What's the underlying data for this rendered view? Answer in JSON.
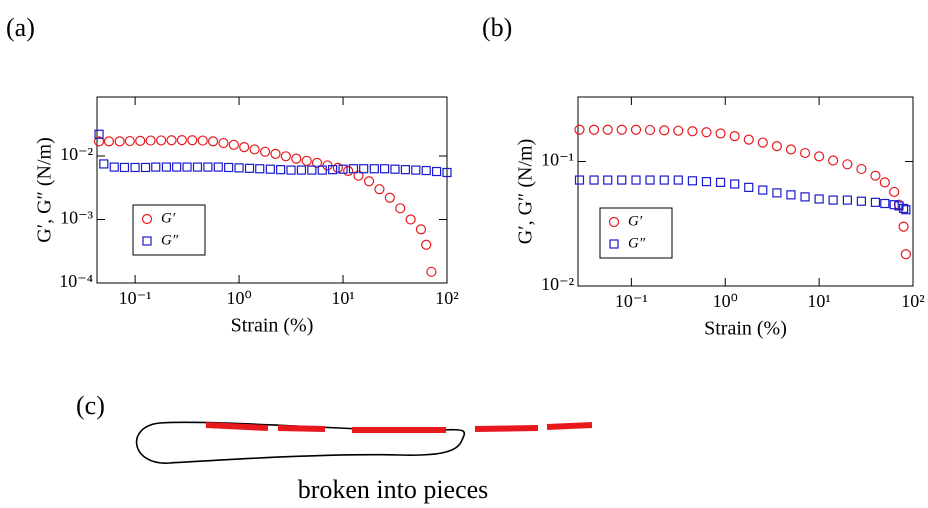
{
  "chart_data": [
    {
      "type": "scatter",
      "panel": "(a)",
      "x_label": "Strain (%)",
      "y_label": "G′, G″ (N/m)",
      "xlog": true,
      "ylog": true,
      "xlim": [
        0.043,
        100
      ],
      "ylim": [
        0.0001,
        0.085
      ],
      "xticks": [
        {
          "value": 0.1,
          "label": "10⁻¹"
        },
        {
          "value": 1,
          "label": "10⁰"
        },
        {
          "value": 10,
          "label": "10¹"
        },
        {
          "value": 100,
          "label": "10²"
        }
      ],
      "yticks": [
        {
          "value": 0.0001,
          "label": "10⁻⁴"
        },
        {
          "value": 0.001,
          "label": "10⁻³"
        },
        {
          "value": 0.01,
          "label": "10⁻²"
        }
      ],
      "legend": "lower left",
      "grid": false,
      "series": [
        {
          "name": "G′",
          "color": "#e8191d",
          "marker": "circle",
          "x": [
            0.045,
            0.056,
            0.071,
            0.089,
            0.112,
            0.141,
            0.178,
            0.224,
            0.282,
            0.355,
            0.447,
            0.562,
            0.708,
            0.891,
            1.12,
            1.41,
            1.78,
            2.24,
            2.82,
            3.55,
            4.47,
            5.62,
            7.08,
            8.91,
            11.2,
            14.1,
            17.8,
            22.4,
            28.2,
            35.5,
            44.7,
            56.2,
            63.1,
            70.8
          ],
          "values": [
            0.017,
            0.017,
            0.017,
            0.0172,
            0.0173,
            0.0175,
            0.0176,
            0.0177,
            0.0178,
            0.0177,
            0.0175,
            0.017,
            0.016,
            0.015,
            0.0138,
            0.0127,
            0.0117,
            0.0108,
            0.0099,
            0.0091,
            0.0084,
            0.0078,
            0.0071,
            0.0065,
            0.0058,
            0.0049,
            0.004,
            0.003,
            0.0022,
            0.0015,
            0.001,
            0.0007,
            0.0004,
            0.00015
          ]
        },
        {
          "name": "G″",
          "color": "#1a1acf",
          "marker": "square",
          "x": [
            0.045,
            0.05,
            0.063,
            0.079,
            0.1,
            0.126,
            0.158,
            0.2,
            0.251,
            0.316,
            0.398,
            0.501,
            0.631,
            0.794,
            1,
            1.26,
            1.58,
            2,
            2.51,
            3.16,
            3.98,
            5.01,
            6.31,
            7.94,
            10,
            12.6,
            15.8,
            20,
            25.1,
            31.6,
            39.8,
            50.1,
            63.1,
            79.4,
            100
          ],
          "values": [
            0.022,
            0.0075,
            0.0067,
            0.0066,
            0.0066,
            0.0066,
            0.0067,
            0.0067,
            0.0067,
            0.0067,
            0.0067,
            0.0067,
            0.0067,
            0.0066,
            0.0065,
            0.0064,
            0.0063,
            0.0062,
            0.0061,
            0.006,
            0.006,
            0.006,
            0.006,
            0.0061,
            0.0062,
            0.0063,
            0.0063,
            0.0063,
            0.0063,
            0.0062,
            0.0061,
            0.006,
            0.0059,
            0.0057,
            0.0055
          ]
        }
      ]
    },
    {
      "type": "scatter",
      "panel": "(b)",
      "x_label": "Strain (%)",
      "y_label": "G′, G″ (N/m)",
      "xlog": true,
      "ylog": true,
      "xlim": [
        0.027,
        100
      ],
      "ylim": [
        0.01,
        0.33
      ],
      "xticks": [
        {
          "value": 0.1,
          "label": "10⁻¹"
        },
        {
          "value": 1,
          "label": "10⁰"
        },
        {
          "value": 10,
          "label": "10¹"
        },
        {
          "value": 100,
          "label": "10²"
        }
      ],
      "yticks": [
        {
          "value": 0.01,
          "label": "10⁻²"
        },
        {
          "value": 0.1,
          "label": "10⁻¹"
        }
      ],
      "legend": "lower left",
      "grid": false,
      "x": [
        0.028,
        0.04,
        0.056,
        0.079,
        0.112,
        0.158,
        0.224,
        0.316,
        0.447,
        0.631,
        0.891,
        1.26,
        1.78,
        2.51,
        3.55,
        5.01,
        7.08,
        10,
        14.1,
        20,
        28.2,
        39.8,
        50.1,
        63.1,
        70.8,
        79.4,
        84
      ],
      "series": [
        {
          "name": "G′",
          "color": "#e8191d",
          "marker": "circle",
          "values": [
            0.18,
            0.18,
            0.18,
            0.18,
            0.18,
            0.179,
            0.178,
            0.177,
            0.175,
            0.172,
            0.168,
            0.16,
            0.15,
            0.142,
            0.133,
            0.125,
            0.117,
            0.11,
            0.102,
            0.095,
            0.087,
            0.077,
            0.068,
            0.057,
            0.045,
            0.03,
            0.018
          ]
        },
        {
          "name": "G″",
          "color": "#1a1acf",
          "marker": "square",
          "values": [
            0.071,
            0.071,
            0.071,
            0.071,
            0.071,
            0.071,
            0.071,
            0.071,
            0.07,
            0.069,
            0.068,
            0.066,
            0.062,
            0.059,
            0.056,
            0.054,
            0.052,
            0.05,
            0.049,
            0.049,
            0.048,
            0.047,
            0.046,
            0.045,
            0.044,
            0.042,
            0.041
          ]
        }
      ]
    }
  ],
  "diagram": {
    "panel": "(c)",
    "caption": "broken into pieces"
  }
}
